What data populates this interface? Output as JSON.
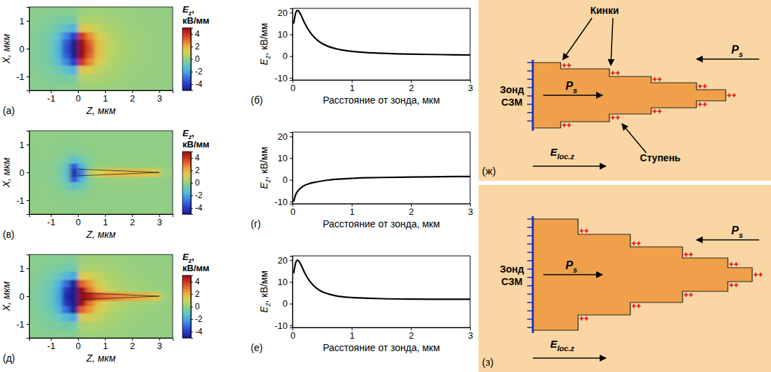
{
  "chart_data": [
    {
      "type": "heatmap",
      "panel": "(а)",
      "x_label": "Z, мкм",
      "y_label": "X, мкм",
      "x": [
        -1.65,
        -1.35,
        -1.05,
        -0.75,
        -0.45,
        -0.15,
        0.15,
        0.45,
        0.75,
        1.05,
        1.35,
        1.65,
        1.95,
        2.25,
        2.55,
        2.85,
        3.15,
        3.45
      ],
      "y": [
        -1.35,
        -1.05,
        -0.75,
        -0.45,
        -0.225,
        -0.075,
        0.075,
        0.225,
        0.45,
        0.75,
        1.05,
        1.35
      ],
      "values": [
        [
          -0.1,
          -0.15,
          -0.2,
          -0.2,
          -0.2,
          -0.2,
          0.2,
          0.25,
          0.25,
          0.2,
          0.2,
          0.15,
          0.1,
          0.1,
          0.05,
          0.05,
          0.05,
          0
        ],
        [
          -0.15,
          -0.2,
          -0.3,
          -0.4,
          -0.5,
          -0.5,
          0.5,
          0.5,
          0.45,
          0.35,
          0.3,
          0.2,
          0.15,
          0.1,
          0.1,
          0.05,
          0.05,
          0.05
        ],
        [
          -0.2,
          -0.3,
          -0.45,
          -0.7,
          -1.2,
          -1.6,
          1.6,
          1.3,
          0.8,
          0.55,
          0.4,
          0.3,
          0.2,
          0.15,
          0.1,
          0.1,
          0.05,
          0.05
        ],
        [
          -0.25,
          -0.35,
          -0.6,
          -1.2,
          -2.5,
          -4,
          4,
          2.6,
          1.4,
          0.8,
          0.5,
          0.35,
          0.25,
          0.2,
          0.15,
          0.1,
          0.1,
          0.05
        ],
        [
          -0.3,
          -0.4,
          -0.65,
          -1.4,
          -3.2,
          -5,
          5,
          3.2,
          1.7,
          0.95,
          0.6,
          0.4,
          0.3,
          0.2,
          0.15,
          0.1,
          0.1,
          0.05
        ],
        [
          -0.3,
          -0.4,
          -0.7,
          -1.5,
          -3.5,
          -5,
          5,
          3.5,
          1.8,
          1,
          0.6,
          0.4,
          0.3,
          0.2,
          0.15,
          0.1,
          0.1,
          0.05
        ],
        [
          -0.3,
          -0.4,
          -0.7,
          -1.5,
          -3.5,
          -5,
          5,
          3.5,
          1.8,
          1,
          0.6,
          0.4,
          0.3,
          0.2,
          0.15,
          0.1,
          0.1,
          0.05
        ],
        [
          -0.3,
          -0.4,
          -0.65,
          -1.4,
          -3.2,
          -5,
          5,
          3.2,
          1.7,
          0.95,
          0.6,
          0.4,
          0.3,
          0.2,
          0.15,
          0.1,
          0.1,
          0.05
        ],
        [
          -0.25,
          -0.35,
          -0.6,
          -1.2,
          -2.5,
          -4,
          4,
          2.6,
          1.4,
          0.8,
          0.5,
          0.35,
          0.25,
          0.2,
          0.15,
          0.1,
          0.1,
          0.05
        ],
        [
          -0.2,
          -0.3,
          -0.45,
          -0.7,
          -1.2,
          -1.6,
          1.6,
          1.3,
          0.8,
          0.55,
          0.4,
          0.3,
          0.2,
          0.15,
          0.1,
          0.1,
          0.05,
          0.05
        ],
        [
          -0.15,
          -0.2,
          -0.3,
          -0.4,
          -0.5,
          -0.5,
          0.5,
          0.5,
          0.45,
          0.35,
          0.3,
          0.2,
          0.15,
          0.1,
          0.1,
          0.05,
          0.05,
          0.05
        ],
        [
          -0.1,
          -0.15,
          -0.2,
          -0.2,
          -0.2,
          -0.2,
          0.2,
          0.25,
          0.25,
          0.2,
          0.2,
          0.15,
          0.1,
          0.1,
          0.05,
          0.05,
          0.05,
          0
        ]
      ],
      "xlim": [
        -1.8,
        3.5
      ],
      "ylim": [
        -1.5,
        1.5
      ],
      "xticks": [
        -1,
        0,
        1,
        2,
        3
      ],
      "yticks": [
        -1,
        0,
        1
      ],
      "colorbar": {
        "label": {
          "main": "E",
          "sub": "z",
          "rest": ",",
          "line2": "кВ/мм"
        },
        "range": [
          -5,
          5
        ],
        "ticks": [
          -4,
          -2,
          0,
          2,
          4
        ]
      }
    },
    {
      "type": "line",
      "panel": "(б)",
      "x_label": "Расстояние от зонда, мкм",
      "y_label": {
        "main": "E",
        "sub": "z",
        "rest": ", кВ/мм"
      },
      "x": [
        0.02,
        0.05,
        0.08,
        0.1,
        0.15,
        0.2,
        0.3,
        0.4,
        0.5,
        0.6,
        0.8,
        1,
        1.25,
        1.5,
        2,
        2.5,
        3
      ],
      "series": [
        {
          "color": "#000000",
          "values": [
            15,
            19.5,
            21,
            20.8,
            18.5,
            15.5,
            10.8,
            7.8,
            5.8,
            4.5,
            3,
            2.2,
            1.6,
            1.3,
            0.9,
            0.7,
            0.5
          ]
        }
      ],
      "xlim": [
        0,
        3
      ],
      "ylim": [
        -11,
        22
      ],
      "xticks": [
        0,
        1,
        2,
        3
      ],
      "yticks": [
        -10,
        0,
        10,
        20
      ]
    },
    {
      "type": "heatmap",
      "panel": "(в)",
      "x_label": "Z, мкм",
      "y_label": "X, мкм",
      "x": [
        -1.65,
        -1.35,
        -1.05,
        -0.75,
        -0.45,
        -0.15,
        0.15,
        0.45,
        0.75,
        1.05,
        1.35,
        1.65,
        1.95,
        2.25,
        2.55,
        2.85,
        3.15,
        3.45
      ],
      "y": [
        -1.35,
        -1.05,
        -0.75,
        -0.45,
        -0.225,
        -0.075,
        0.075,
        0.225,
        0.45,
        0.75,
        1.05,
        1.35
      ],
      "values": [
        [
          0,
          0,
          0,
          0,
          -0.05,
          -0.05,
          0,
          0,
          0,
          0,
          0,
          0,
          0,
          0,
          0,
          0,
          0,
          0
        ],
        [
          0,
          -0.05,
          -0.05,
          -0.05,
          -0.1,
          -0.1,
          -0.05,
          0,
          0,
          0,
          0,
          0,
          0,
          0,
          0,
          0,
          0,
          0
        ],
        [
          -0.05,
          -0.05,
          -0.05,
          -0.1,
          -0.2,
          -0.3,
          -0.2,
          -0.1,
          0,
          0,
          0,
          0,
          0,
          0,
          0,
          0,
          0,
          0
        ],
        [
          -0.05,
          -0.05,
          -0.1,
          -0.2,
          -0.5,
          -1.2,
          -0.7,
          -0.2,
          0,
          0.05,
          0.05,
          0.05,
          0.05,
          0.05,
          0.05,
          0,
          0,
          0
        ],
        [
          -0.05,
          -0.1,
          -0.15,
          -0.3,
          -0.9,
          -3.5,
          -1.5,
          -0.2,
          0.1,
          0.15,
          0.15,
          0.15,
          0.1,
          0.1,
          0.1,
          0.1,
          0.05,
          0
        ],
        [
          -0.05,
          -0.1,
          -0.15,
          -0.3,
          -1,
          -4.5,
          -2.5,
          0.5,
          1.3,
          1.6,
          1.8,
          1.8,
          1.8,
          1.7,
          1.6,
          1.5,
          0.3,
          0.1
        ],
        [
          -0.05,
          -0.1,
          -0.15,
          -0.3,
          -1,
          -4.5,
          -2.5,
          0.5,
          1.3,
          1.6,
          1.8,
          1.8,
          1.8,
          1.7,
          1.6,
          1.5,
          0.3,
          0.1
        ],
        [
          -0.05,
          -0.1,
          -0.15,
          -0.3,
          -0.9,
          -3.5,
          -1.5,
          -0.2,
          0.1,
          0.15,
          0.15,
          0.15,
          0.1,
          0.1,
          0.1,
          0.1,
          0.05,
          0
        ],
        [
          -0.05,
          -0.05,
          -0.1,
          -0.2,
          -0.5,
          -1.2,
          -0.7,
          -0.2,
          0,
          0.05,
          0.05,
          0.05,
          0.05,
          0.05,
          0.05,
          0,
          0,
          0
        ],
        [
          -0.05,
          -0.05,
          -0.05,
          -0.1,
          -0.2,
          -0.3,
          -0.2,
          -0.1,
          0,
          0,
          0,
          0,
          0,
          0,
          0,
          0,
          0,
          0
        ],
        [
          0,
          -0.05,
          -0.05,
          -0.05,
          -0.1,
          -0.1,
          -0.05,
          0,
          0,
          0,
          0,
          0,
          0,
          0,
          0,
          0,
          0,
          0
        ],
        [
          0,
          0,
          0,
          0,
          -0.05,
          -0.05,
          0,
          0,
          0,
          0,
          0,
          0,
          0,
          0,
          0,
          0,
          0,
          0
        ]
      ],
      "outline": {
        "z": [
          0,
          3,
          0
        ],
        "x": [
          0.12,
          0,
          -0.12
        ]
      },
      "xlim": [
        -1.8,
        3.5
      ],
      "ylim": [
        -1.5,
        1.5
      ],
      "xticks": [
        -1,
        0,
        1,
        2,
        3
      ],
      "yticks": [
        -1,
        0,
        1
      ],
      "colorbar": {
        "label": {
          "main": "E",
          "sub": "z",
          "rest": ",",
          "line2": "кВ/мм"
        },
        "range": [
          -5,
          5
        ],
        "ticks": [
          -4,
          -2,
          0,
          2,
          4
        ]
      }
    },
    {
      "type": "line",
      "panel": "(г)",
      "x_label": "Расстояние от зонда, мкм",
      "y_label": {
        "main": "E",
        "sub": "z",
        "rest": ", кВ/мм"
      },
      "x": [
        0.02,
        0.05,
        0.08,
        0.1,
        0.15,
        0.2,
        0.3,
        0.4,
        0.5,
        0.6,
        0.8,
        1,
        1.25,
        1.5,
        2,
        2.5,
        3
      ],
      "series": [
        {
          "color": "#000000",
          "values": [
            -10,
            -7,
            -5.5,
            -4.8,
            -3.5,
            -2.6,
            -1.6,
            -1,
            -0.5,
            -0.1,
            0.4,
            0.7,
            0.95,
            1.1,
            1.3,
            1.45,
            1.55
          ]
        }
      ],
      "xlim": [
        0,
        3
      ],
      "ylim": [
        -11,
        22
      ],
      "xticks": [
        0,
        1,
        2,
        3
      ],
      "yticks": [
        -10,
        0,
        10,
        20
      ]
    },
    {
      "type": "heatmap",
      "panel": "(д)",
      "x_label": "Z, мкм",
      "y_label": "X, мкм",
      "x": [
        -1.65,
        -1.35,
        -1.05,
        -0.75,
        -0.45,
        -0.15,
        0.15,
        0.45,
        0.75,
        1.05,
        1.35,
        1.65,
        1.95,
        2.25,
        2.55,
        2.85,
        3.15,
        3.45
      ],
      "y": [
        -1.35,
        -1.05,
        -0.75,
        -0.45,
        -0.225,
        -0.075,
        0.075,
        0.225,
        0.45,
        0.75,
        1.05,
        1.35
      ],
      "values": [
        [
          -0.1,
          -0.15,
          -0.2,
          -0.2,
          -0.25,
          -0.25,
          0.2,
          0.25,
          0.25,
          0.2,
          0.2,
          0.15,
          0.1,
          0.1,
          0.05,
          0.05,
          0.05,
          0
        ],
        [
          -0.15,
          -0.25,
          -0.35,
          -0.45,
          -0.6,
          -0.6,
          0.45,
          0.5,
          0.45,
          0.35,
          0.3,
          0.2,
          0.15,
          0.1,
          0.1,
          0.05,
          0.05,
          0.05
        ],
        [
          -0.25,
          -0.35,
          -0.5,
          -0.8,
          -1.4,
          -1.9,
          1.4,
          1.2,
          0.8,
          0.55,
          0.4,
          0.3,
          0.2,
          0.15,
          0.1,
          0.1,
          0.05,
          0.05
        ],
        [
          -0.3,
          -0.4,
          -0.7,
          -1.4,
          -3,
          -5,
          3.3,
          2.4,
          1.4,
          0.85,
          0.55,
          0.4,
          0.3,
          0.25,
          0.2,
          0.1,
          0.1,
          0.05
        ],
        [
          -0.35,
          -0.5,
          -0.8,
          -1.7,
          -4.1,
          -5,
          5,
          3,
          1.8,
          1.1,
          0.75,
          0.55,
          0.4,
          0.3,
          0.25,
          0.2,
          0.15,
          0.05
        ],
        [
          -0.35,
          -0.5,
          -0.85,
          -1.8,
          -4.5,
          -5,
          5,
          4.5,
          3.5,
          3,
          2.8,
          2.5,
          2.3,
          2.1,
          2,
          1.8,
          0.4,
          0.15
        ],
        [
          -0.35,
          -0.5,
          -0.85,
          -1.8,
          -4.5,
          -5,
          5,
          4.5,
          3.5,
          3,
          2.8,
          2.5,
          2.3,
          2.1,
          2,
          1.8,
          0.4,
          0.15
        ],
        [
          -0.35,
          -0.5,
          -0.8,
          -1.7,
          -4.1,
          -5,
          5,
          3,
          1.8,
          1.1,
          0.75,
          0.55,
          0.4,
          0.3,
          0.25,
          0.2,
          0.15,
          0.05
        ],
        [
          -0.3,
          -0.4,
          -0.7,
          -1.4,
          -3,
          -5,
          3.3,
          2.4,
          1.4,
          0.85,
          0.55,
          0.4,
          0.3,
          0.25,
          0.2,
          0.1,
          0.1,
          0.05
        ],
        [
          -0.25,
          -0.35,
          -0.5,
          -0.8,
          -1.4,
          -1.9,
          1.4,
          1.2,
          0.8,
          0.55,
          0.4,
          0.3,
          0.2,
          0.15,
          0.1,
          0.1,
          0.05,
          0.05
        ],
        [
          -0.15,
          -0.25,
          -0.35,
          -0.45,
          -0.6,
          -0.6,
          0.45,
          0.5,
          0.45,
          0.35,
          0.3,
          0.2,
          0.15,
          0.1,
          0.1,
          0.05,
          0.05,
          0.05
        ],
        [
          -0.1,
          -0.15,
          -0.2,
          -0.2,
          -0.25,
          -0.25,
          0.2,
          0.25,
          0.25,
          0.2,
          0.2,
          0.15,
          0.1,
          0.1,
          0.05,
          0.05,
          0.05,
          0
        ]
      ],
      "outline": {
        "z": [
          0,
          3,
          0
        ],
        "x": [
          0.12,
          0,
          -0.12
        ]
      },
      "xlim": [
        -1.8,
        3.5
      ],
      "ylim": [
        -1.5,
        1.5
      ],
      "xticks": [
        -1,
        0,
        1,
        2,
        3
      ],
      "yticks": [
        -1,
        0,
        1
      ],
      "colorbar": {
        "label": {
          "main": "E",
          "sub": "z",
          "rest": ",",
          "line2": "кВ/мм"
        },
        "range": [
          -5,
          5
        ],
        "ticks": [
          -4,
          -2,
          0,
          2,
          4
        ]
      }
    },
    {
      "type": "line",
      "panel": "(е)",
      "x_label": "Расстояние от зонда, мкм",
      "y_label": {
        "main": "E",
        "sub": "z",
        "rest": ", кВ/мм"
      },
      "x": [
        0.02,
        0.05,
        0.08,
        0.1,
        0.15,
        0.2,
        0.3,
        0.4,
        0.5,
        0.6,
        0.8,
        1,
        1.25,
        1.5,
        2,
        2.5,
        3
      ],
      "series": [
        {
          "color": "#000000",
          "values": [
            14,
            18.5,
            20,
            19.8,
            17.5,
            14.5,
            10,
            7.2,
            5.5,
            4.5,
            3.3,
            2.8,
            2.5,
            2.3,
            2.1,
            2,
            2
          ]
        }
      ],
      "xlim": [
        0,
        3
      ],
      "ylim": [
        -11,
        22
      ],
      "xticks": [
        0,
        1,
        2,
        3
      ],
      "yticks": [
        -10,
        0,
        10,
        20
      ]
    }
  ],
  "diagrams": [
    {
      "panel": "(ж)",
      "kinks": "Кинки",
      "step": "Ступень",
      "probe": [
        "Зонд",
        "СЗМ"
      ],
      "ps": [
        {
          "main": "P",
          "sub": "s"
        },
        {
          "main": "P",
          "sub": "s"
        }
      ],
      "field": {
        "main": "E",
        "sub": "loc.z"
      }
    },
    {
      "panel": "(з)",
      "probe": [
        "Зонд",
        "СЗМ"
      ],
      "ps": [
        {
          "main": "P",
          "sub": "s"
        },
        {
          "main": "P",
          "sub": "s"
        }
      ],
      "field": {
        "main": "E",
        "sub": "loc.z"
      }
    }
  ]
}
